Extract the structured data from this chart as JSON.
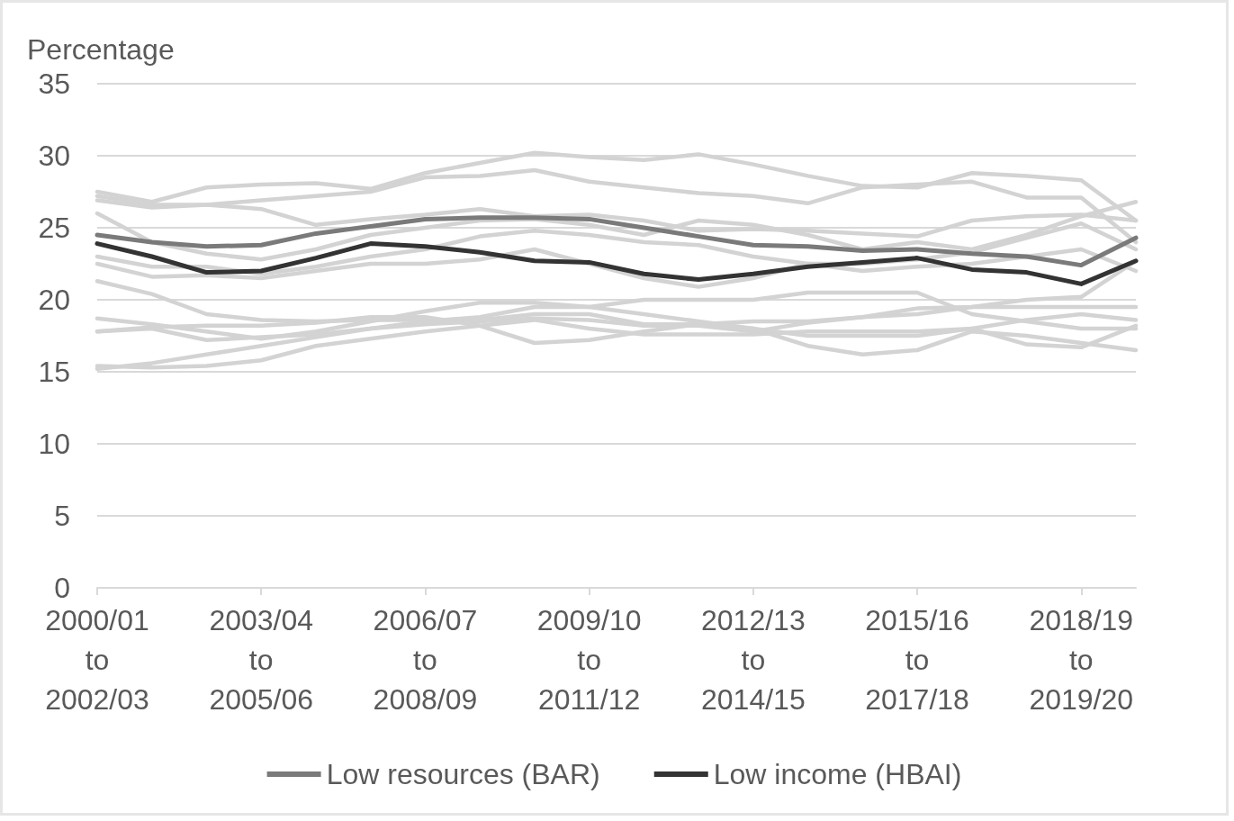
{
  "chart_data": {
    "type": "line",
    "ylabel": "Percentage",
    "categories": [
      "2000/01\nto\n2002/03",
      null,
      null,
      "2003/04\nto\n2005/06",
      null,
      null,
      "2006/07\nto\n2008/09",
      null,
      null,
      "2009/10\nto\n2011/12",
      null,
      null,
      "2012/13\nto\n2014/15",
      null,
      null,
      "2015/16\nto\n2017/18",
      null,
      null,
      "2018/19\nto\n2019/20",
      null
    ],
    "ylim": [
      0,
      35
    ],
    "yticks": [
      0,
      5,
      10,
      15,
      20,
      25,
      30,
      35
    ],
    "grid": "y",
    "legend": "bottom",
    "marker": "none",
    "line_style": "solid",
    "series": [
      {
        "color": "#d3d3d3",
        "values": [
          27.5,
          26.8,
          27.8,
          28.0,
          28.1,
          27.7,
          28.8,
          29.5,
          30.2,
          29.9,
          29.7,
          30.1,
          29.4,
          28.6,
          27.9,
          27.8,
          28.8,
          28.6,
          28.3,
          25.5
        ]
      },
      {
        "color": "#d3d3d3",
        "values": [
          26.9,
          26.4,
          26.6,
          26.9,
          27.2,
          27.5,
          28.5,
          28.6,
          29.0,
          28.2,
          27.8,
          27.4,
          27.2,
          26.7,
          27.8,
          28.0,
          28.2,
          27.1,
          27.1,
          24.0
        ]
      },
      {
        "color": "#d3d3d3",
        "values": [
          27.2,
          26.6,
          26.6,
          26.3,
          25.2,
          25.6,
          25.9,
          26.3,
          25.8,
          25.9,
          25.5,
          24.8,
          24.9,
          24.8,
          24.6,
          24.4,
          25.5,
          25.8,
          25.9,
          25.5
        ]
      },
      {
        "color": "#d3d3d3",
        "values": [
          26.0,
          24.0,
          23.2,
          22.8,
          23.5,
          24.5,
          25.0,
          25.5,
          25.6,
          25.2,
          24.5,
          25.5,
          25.2,
          24.5,
          23.5,
          24.0,
          23.5,
          24.5,
          25.8,
          26.8
        ]
      },
      {
        "color": "#d3d3d3",
        "values": [
          23.0,
          22.3,
          22.3,
          21.8,
          22.3,
          23.0,
          23.5,
          24.4,
          24.8,
          24.5,
          24.0,
          23.8,
          23.0,
          22.5,
          22.5,
          22.8,
          23.3,
          24.3,
          25.3,
          23.5
        ]
      },
      {
        "color": "#d3d3d3",
        "values": [
          22.5,
          21.6,
          21.7,
          21.5,
          22.0,
          22.5,
          22.5,
          22.8,
          23.5,
          22.5,
          21.5,
          20.9,
          21.5,
          22.5,
          22.0,
          22.3,
          22.5,
          23.0,
          23.5,
          22.0
        ]
      },
      {
        "color": "#d3d3d3",
        "values": [
          21.3,
          20.4,
          19.0,
          18.6,
          18.5,
          18.6,
          18.6,
          18.6,
          19.0,
          19.0,
          18.3,
          18.3,
          18.0,
          17.5,
          17.5,
          17.5,
          18.0,
          18.6,
          19.0,
          18.6
        ]
      },
      {
        "color": "#d3d3d3",
        "values": [
          18.7,
          18.3,
          17.8,
          17.3,
          17.8,
          18.5,
          19.2,
          19.8,
          19.8,
          19.5,
          20.0,
          20.0,
          20.0,
          20.5,
          20.5,
          20.5,
          19.0,
          18.5,
          18.0,
          18.0
        ]
      },
      {
        "color": "#d3d3d3",
        "values": [
          17.8,
          18.1,
          18.2,
          18.2,
          18.4,
          18.8,
          18.8,
          18.2,
          17.0,
          17.2,
          17.8,
          18.3,
          18.5,
          18.5,
          18.8,
          19.0,
          19.5,
          19.5,
          19.5,
          19.5
        ]
      },
      {
        "color": "#d3d3d3",
        "values": [
          15.2,
          15.6,
          16.2,
          16.8,
          17.4,
          18.0,
          18.5,
          18.8,
          19.5,
          19.5,
          19.0,
          18.5,
          18.0,
          16.8,
          16.2,
          16.5,
          17.8,
          17.5,
          17.0,
          16.5
        ]
      },
      {
        "color": "#d3d3d3",
        "values": [
          15.4,
          15.3,
          15.4,
          15.8,
          16.8,
          17.3,
          17.8,
          18.2,
          18.6,
          18.0,
          17.6,
          17.6,
          17.6,
          17.8,
          17.8,
          17.8,
          18.0,
          16.9,
          16.7,
          18.2
        ]
      },
      {
        "color": "#d3d3d3",
        "values": [
          17.8,
          18.0,
          17.2,
          17.4,
          17.6,
          18.0,
          18.3,
          18.5,
          18.7,
          18.6,
          18.2,
          18.2,
          17.8,
          18.4,
          18.8,
          19.4,
          19.5,
          20.0,
          20.2,
          22.7
        ]
      },
      {
        "name": "Low resources (BAR)",
        "color": "#7a7a7a",
        "values": [
          24.5,
          24.0,
          23.7,
          23.8,
          24.6,
          25.1,
          25.6,
          25.7,
          25.7,
          25.6,
          25.0,
          24.4,
          23.8,
          23.7,
          23.4,
          23.5,
          23.2,
          23.0,
          22.4,
          24.3
        ]
      },
      {
        "name": "Low income (HBAI)",
        "color": "#333333",
        "values": [
          23.9,
          23.0,
          21.9,
          22.0,
          22.9,
          23.9,
          23.7,
          23.3,
          22.7,
          22.6,
          21.8,
          21.4,
          21.8,
          22.3,
          22.6,
          22.9,
          22.1,
          21.9,
          21.1,
          22.7
        ]
      }
    ]
  }
}
